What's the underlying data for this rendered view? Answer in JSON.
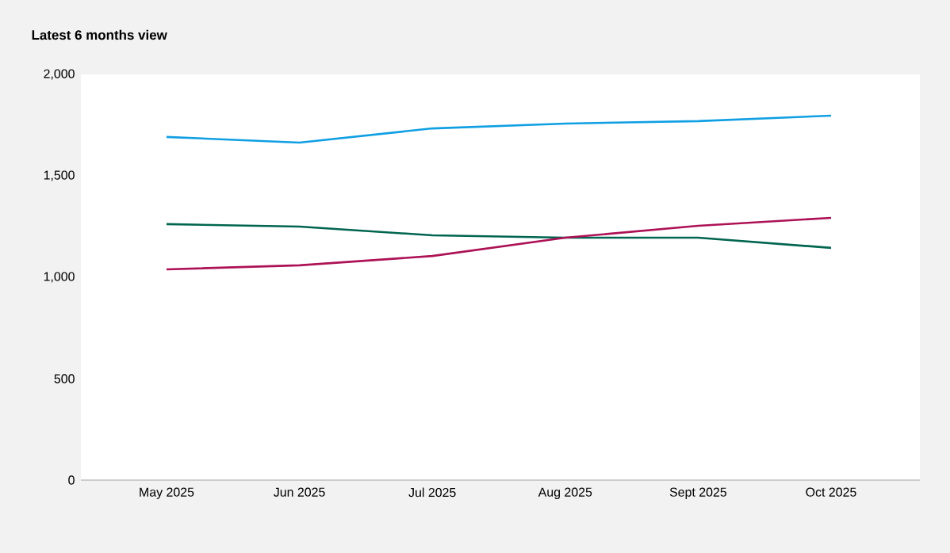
{
  "chart_data": {
    "type": "line",
    "title": "Latest 6 months view",
    "categories": [
      "May 2025",
      "Jun 2025",
      "Jul 2025",
      "Aug 2025",
      "Sept 2025",
      "Oct 2025"
    ],
    "series": [
      {
        "color": "#109fe3",
        "values": [
          1692,
          1664,
          1734,
          1758,
          1770,
          1797
        ]
      },
      {
        "color": "#006550",
        "values": [
          1262,
          1250,
          1207,
          1195,
          1195,
          1145
        ]
      },
      {
        "color": "#ad1156",
        "values": [
          1039,
          1059,
          1105,
          1195,
          1254,
          1293
        ]
      }
    ],
    "ylim": [
      0,
      2000
    ],
    "yticks": [
      {
        "value": 0,
        "label": "0"
      },
      {
        "value": 500,
        "label": "500"
      },
      {
        "value": 1000,
        "label": "1,000"
      },
      {
        "value": 1500,
        "label": "1,500"
      },
      {
        "value": 2000,
        "label": "2,000"
      }
    ],
    "grid": false,
    "marker": "none",
    "line_style": "solid"
  }
}
